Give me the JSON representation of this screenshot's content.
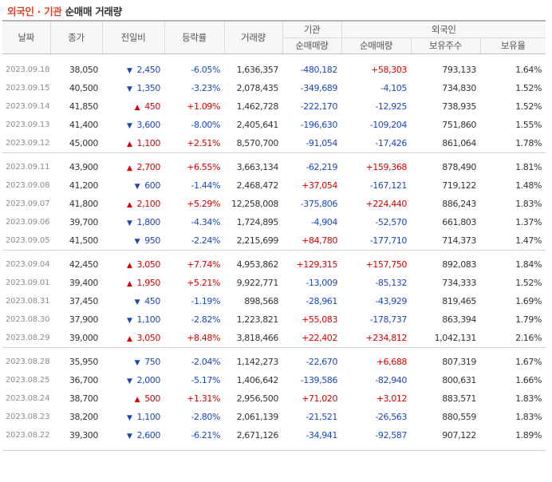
{
  "title": {
    "part1": "외국인 · 기관",
    "part2": "순매매 거래량"
  },
  "headers": {
    "date": "날짜",
    "close": "종가",
    "change": "전일비",
    "rate": "등락률",
    "volume": "거래량",
    "inst": "기관",
    "inst_net": "순매매량",
    "foreign": "외국인",
    "foreign_net": "순매매량",
    "holdings": "보유주수",
    "hold_ratio": "보유율"
  },
  "rows": [
    {
      "date": "2023.09.18",
      "close": "38,050",
      "dir": "down",
      "change": "2,450",
      "rate": "-6.05%",
      "volume": "1,636,357",
      "inst": "-480,182",
      "foreign": "+58,303",
      "holdings": "793,133",
      "ratio": "1.64%"
    },
    {
      "date": "2023.09.15",
      "close": "40,500",
      "dir": "down",
      "change": "1,350",
      "rate": "-3.23%",
      "volume": "2,078,435",
      "inst": "-349,689",
      "foreign": "-4,105",
      "holdings": "734,830",
      "ratio": "1.52%"
    },
    {
      "date": "2023.09.14",
      "close": "41,850",
      "dir": "up",
      "change": "450",
      "rate": "+1.09%",
      "volume": "1,462,728",
      "inst": "-222,170",
      "foreign": "-12,925",
      "holdings": "738,935",
      "ratio": "1.52%"
    },
    {
      "date": "2023.09.13",
      "close": "41,400",
      "dir": "down",
      "change": "3,600",
      "rate": "-8.00%",
      "volume": "2,405,641",
      "inst": "-196,630",
      "foreign": "-109,204",
      "holdings": "751,860",
      "ratio": "1.55%"
    },
    {
      "date": "2023.09.12",
      "close": "45,000",
      "dir": "up",
      "change": "1,100",
      "rate": "+2.51%",
      "volume": "8,570,700",
      "inst": "-91,054",
      "foreign": "-17,426",
      "holdings": "861,064",
      "ratio": "1.78%"
    },
    {
      "date": "2023.09.11",
      "close": "43,900",
      "dir": "up",
      "change": "2,700",
      "rate": "+6.55%",
      "volume": "3,663,134",
      "inst": "-62,219",
      "foreign": "+159,368",
      "holdings": "878,490",
      "ratio": "1.81%"
    },
    {
      "date": "2023.09.08",
      "close": "41,200",
      "dir": "down",
      "change": "600",
      "rate": "-1.44%",
      "volume": "2,468,472",
      "inst": "+37,054",
      "foreign": "-167,121",
      "holdings": "719,122",
      "ratio": "1.48%"
    },
    {
      "date": "2023.09.07",
      "close": "41,800",
      "dir": "up",
      "change": "2,100",
      "rate": "+5.29%",
      "volume": "12,258,008",
      "inst": "-375,806",
      "foreign": "+224,440",
      "holdings": "886,243",
      "ratio": "1.83%"
    },
    {
      "date": "2023.09.06",
      "close": "39,700",
      "dir": "down",
      "change": "1,800",
      "rate": "-4.34%",
      "volume": "1,724,895",
      "inst": "-4,904",
      "foreign": "-52,570",
      "holdings": "661,803",
      "ratio": "1.37%"
    },
    {
      "date": "2023.09.05",
      "close": "41,500",
      "dir": "down",
      "change": "950",
      "rate": "-2.24%",
      "volume": "2,215,699",
      "inst": "+84,780",
      "foreign": "-177,710",
      "holdings": "714,373",
      "ratio": "1.47%"
    },
    {
      "date": "2023.09.04",
      "close": "42,450",
      "dir": "up",
      "change": "3,050",
      "rate": "+7.74%",
      "volume": "4,953,862",
      "inst": "+129,315",
      "foreign": "+157,750",
      "holdings": "892,083",
      "ratio": "1.84%"
    },
    {
      "date": "2023.09.01",
      "close": "39,400",
      "dir": "up",
      "change": "1,950",
      "rate": "+5.21%",
      "volume": "9,922,771",
      "inst": "-13,009",
      "foreign": "-85,132",
      "holdings": "734,333",
      "ratio": "1.52%"
    },
    {
      "date": "2023.08.31",
      "close": "37,450",
      "dir": "down",
      "change": "450",
      "rate": "-1.19%",
      "volume": "898,568",
      "inst": "-28,961",
      "foreign": "-43,929",
      "holdings": "819,465",
      "ratio": "1.69%"
    },
    {
      "date": "2023.08.30",
      "close": "37,900",
      "dir": "down",
      "change": "1,100",
      "rate": "-2.82%",
      "volume": "1,223,821",
      "inst": "+55,083",
      "foreign": "-178,737",
      "holdings": "863,394",
      "ratio": "1.79%"
    },
    {
      "date": "2023.08.29",
      "close": "39,000",
      "dir": "up",
      "change": "3,050",
      "rate": "+8.48%",
      "volume": "3,818,466",
      "inst": "+22,402",
      "foreign": "+234,812",
      "holdings": "1,042,131",
      "ratio": "2.16%"
    },
    {
      "date": "2023.08.28",
      "close": "35,950",
      "dir": "down",
      "change": "750",
      "rate": "-2.04%",
      "volume": "1,142,273",
      "inst": "-22,670",
      "foreign": "+6,688",
      "holdings": "807,319",
      "ratio": "1.67%"
    },
    {
      "date": "2023.08.25",
      "close": "36,700",
      "dir": "down",
      "change": "2,000",
      "rate": "-5.17%",
      "volume": "1,406,642",
      "inst": "-139,586",
      "foreign": "-82,940",
      "holdings": "800,631",
      "ratio": "1.66%"
    },
    {
      "date": "2023.08.24",
      "close": "38,700",
      "dir": "up",
      "change": "500",
      "rate": "+1.31%",
      "volume": "2,956,500",
      "inst": "+71,020",
      "foreign": "+3,012",
      "holdings": "883,571",
      "ratio": "1.83%"
    },
    {
      "date": "2023.08.23",
      "close": "38,200",
      "dir": "down",
      "change": "1,100",
      "rate": "-2.80%",
      "volume": "2,061,139",
      "inst": "-21,521",
      "foreign": "-26,563",
      "holdings": "880,559",
      "ratio": "1.83%"
    },
    {
      "date": "2023.08.22",
      "close": "39,300",
      "dir": "down",
      "change": "2,600",
      "rate": "-6.21%",
      "volume": "2,671,126",
      "inst": "-34,941",
      "foreign": "-92,587",
      "holdings": "907,122",
      "ratio": "1.89%"
    }
  ],
  "icons": {
    "up": "triangle-up-icon",
    "down": "triangle-down-icon"
  },
  "colors": {
    "up": "#d60000",
    "down": "#1a47b8",
    "title_accent": "#e0452b"
  }
}
